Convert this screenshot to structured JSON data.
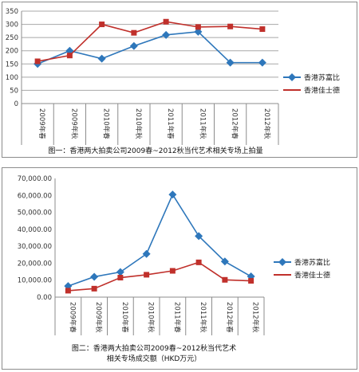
{
  "chart_data": [
    {
      "type": "line",
      "categories": [
        "2009年春",
        "2009年秋",
        "2010年春",
        "2010年秋",
        "2011年春",
        "2011年秋",
        "2012年春",
        "2012年秋"
      ],
      "series": [
        {
          "name": "香港苏富比",
          "color": "#2e77bb",
          "marker": "diamond",
          "values": [
            150,
            200,
            170,
            218,
            260,
            272,
            155,
            155
          ]
        },
        {
          "name": "香港佳士德",
          "color": "#c0302b",
          "marker": "square",
          "values": [
            160,
            182,
            300,
            268,
            310,
            290,
            292,
            282
          ]
        }
      ],
      "ylim": [
        0,
        350
      ],
      "yticks": [
        "0",
        "50",
        "100",
        "150",
        "200",
        "250",
        "300",
        "350"
      ],
      "grid": true,
      "legend_position": "right",
      "caption": "图一：香港两大拍卖公司2009春~2012秋当代艺术相关专场上拍量"
    },
    {
      "type": "line",
      "categories": [
        "2009年春",
        "2009年秋",
        "2010年春",
        "2010年秋",
        "2011年春",
        "2011年秋",
        "2012年春",
        "2012年秋"
      ],
      "series": [
        {
          "name": "香港苏富比",
          "color": "#2e77bb",
          "marker": "diamond",
          "values": [
            6500,
            12000,
            14800,
            25500,
            60500,
            36000,
            21000,
            12200
          ]
        },
        {
          "name": "香港佳士德",
          "color": "#c0302b",
          "marker": "square",
          "values": [
            3800,
            5000,
            11500,
            13200,
            15500,
            20500,
            10200,
            9600
          ]
        }
      ],
      "ylim": [
        0,
        70000
      ],
      "yticks": [
        "0.00",
        "10,000.00",
        "20,000.00",
        "30,000.00",
        "40,000.00",
        "50,000.00",
        "60,000.00",
        "70,000.00"
      ],
      "grid": false,
      "legend_position": "right",
      "caption_lines": [
        "图二：香港两大拍卖公司2009春~2012秋当代艺术",
        "相关专场成交额（HKD万元）"
      ]
    }
  ]
}
